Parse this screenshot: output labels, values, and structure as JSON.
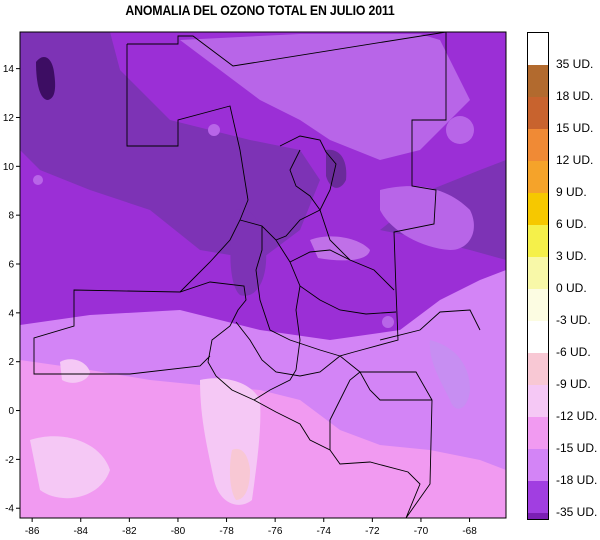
{
  "title": "ANOMALIA DEL OZONO TOTAL EN JULIO 2011",
  "chart_data": {
    "type": "heatmap",
    "title": "ANOMALIA DEL OZONO TOTAL EN JULIO 2011",
    "x_ticks": [
      "-86",
      "-84",
      "-82",
      "-80",
      "-78",
      "-76",
      "-74",
      "-72",
      "-70",
      "-68"
    ],
    "y_ticks": [
      "14",
      "12",
      "10",
      "8",
      "6",
      "4",
      "2",
      "0",
      "-2",
      "-4"
    ],
    "xlim": [
      -86.5,
      -66.5
    ],
    "ylim": [
      -4.4,
      15.5
    ],
    "legend": {
      "placement": "right",
      "levels": [
        {
          "label": "35 UD.",
          "color": "#b26a2e"
        },
        {
          "label": "18 UD.",
          "color": "#c8632e"
        },
        {
          "label": "15 UD.",
          "color": "#f08a35"
        },
        {
          "label": "12 UD.",
          "color": "#f5a32a"
        },
        {
          "label": "9 UD.",
          "color": "#f6c800"
        },
        {
          "label": "6 UD.",
          "color": "#f5f04a"
        },
        {
          "label": "3 UD.",
          "color": "#f8f8a8"
        },
        {
          "label": "0 UD.",
          "color": "#fcfce2"
        },
        {
          "label": "-3 UD.",
          "color": "#ffffff"
        },
        {
          "label": "-6 UD.",
          "color": "#f8c8d4"
        },
        {
          "label": "-9 UD.",
          "color": "#f5c8f5"
        },
        {
          "label": "-12 UD.",
          "color": "#f19af1"
        },
        {
          "label": "-15 UD.",
          "color": "#d384f6"
        },
        {
          "label": "-18 UD.",
          "color": "#a13ee1"
        },
        {
          "label": "-35 UD.",
          "color": "#7b1fb4"
        }
      ],
      "top_color": "#ffffff",
      "bottom_color": "#3d0d63"
    }
  }
}
